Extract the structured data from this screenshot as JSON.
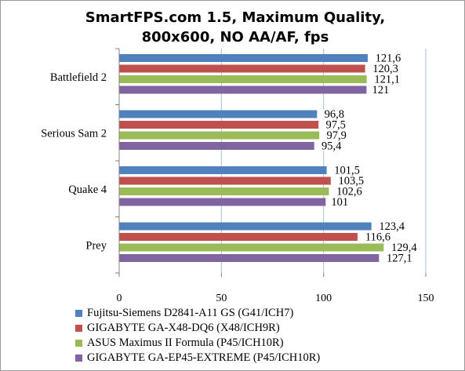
{
  "chart_data": {
    "type": "bar",
    "orientation": "horizontal",
    "title": "SmartFPS.com 1.5, Maximum Quality, 800x600, NO AA/AF, fps",
    "categories": [
      "Battlefield 2",
      "Serious Sam 2",
      "Quake 4",
      "Prey"
    ],
    "series": [
      {
        "name": "Fujitsu-Siemens D2841-A11 GS (G41/ICH7)",
        "color": "#4F81BD",
        "values": [
          121.6,
          96.8,
          101.5,
          123.4
        ],
        "labels": [
          "121,6",
          "96,8",
          "101,5",
          "123,4"
        ]
      },
      {
        "name": "GIGABYTE GA-X48-DQ6 (X48/ICH9R)",
        "color": "#C0504D",
        "values": [
          120.3,
          97.5,
          103.5,
          116.6
        ],
        "labels": [
          "120,3",
          "97,5",
          "103,5",
          "116,6"
        ]
      },
      {
        "name": "ASUS Maximus II Formula (P45/ICH10R)",
        "color": "#9BBB59",
        "values": [
          121.1,
          97.9,
          102.6,
          129.4
        ],
        "labels": [
          "121,1",
          "97,9",
          "102,6",
          "129,4"
        ]
      },
      {
        "name": "GIGABYTE GA-EP45-EXTREME (P45/ICH10R)",
        "color": "#8064A2",
        "values": [
          121,
          95.4,
          101,
          127.1
        ],
        "labels": [
          "121",
          "95,4",
          "101",
          "127,1"
        ]
      }
    ],
    "xlim": [
      0,
      150
    ],
    "xticks": [
      "0",
      "50",
      "100",
      "150"
    ],
    "grid": true,
    "legend_position": "bottom"
  }
}
